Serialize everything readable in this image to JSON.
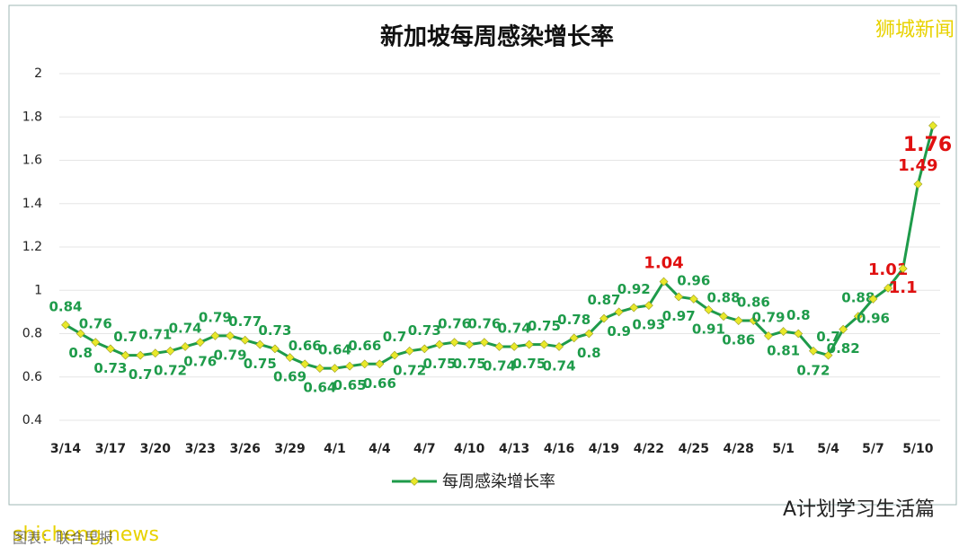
{
  "chart_data": {
    "type": "line",
    "title": "新加坡每周感染增长率",
    "categories": [
      "3/14",
      null,
      null,
      "3/17",
      null,
      null,
      "3/20",
      null,
      null,
      "3/23",
      null,
      null,
      "3/26",
      null,
      null,
      "3/29",
      null,
      null,
      "4/1",
      null,
      null,
      "4/4",
      null,
      null,
      "4/7",
      null,
      null,
      "4/10",
      null,
      null,
      "4/13",
      null,
      null,
      "4/16",
      null,
      null,
      "4/19",
      null,
      null,
      "4/22",
      null,
      null,
      "4/25",
      null,
      null,
      "4/28",
      null,
      null,
      "5/1",
      null,
      null,
      "5/4",
      null,
      null,
      "5/7",
      null,
      null,
      "5/10",
      null
    ],
    "series": [
      {
        "name": "每周感染增长率",
        "color": "#1e9b4a",
        "marker_color": "#e8e82a",
        "values": [
          0.84,
          0.8,
          0.76,
          0.73,
          0.7,
          0.7,
          0.71,
          0.72,
          0.74,
          0.76,
          0.79,
          0.79,
          0.77,
          0.75,
          0.73,
          0.69,
          0.66,
          0.64,
          0.64,
          0.65,
          0.66,
          0.66,
          0.7,
          0.72,
          0.73,
          0.75,
          0.76,
          0.75,
          0.76,
          0.74,
          0.74,
          0.75,
          0.75,
          0.74,
          0.78,
          0.8,
          0.87,
          0.9,
          0.92,
          0.93,
          1.04,
          0.97,
          0.96,
          0.91,
          0.88,
          0.86,
          0.86,
          0.79,
          0.81,
          0.8,
          0.72,
          0.7,
          0.82,
          0.88,
          0.96,
          1.01,
          1.1,
          1.49,
          1.76
        ]
      }
    ],
    "label_color": "#1e9b4a",
    "highlight_color": "#e01010",
    "ylim": [
      0.4,
      2
    ],
    "yticks": [
      0.4,
      0.6,
      0.8,
      1,
      1.2,
      1.4,
      1.6,
      1.8,
      2
    ],
    "grid": true,
    "legend": "bottom"
  },
  "texts": {
    "watermark_top": "狮城新闻",
    "watermark_bottom": "A计划学习生活篇",
    "site": "shicheng.news",
    "source": "图表：联合早报"
  }
}
